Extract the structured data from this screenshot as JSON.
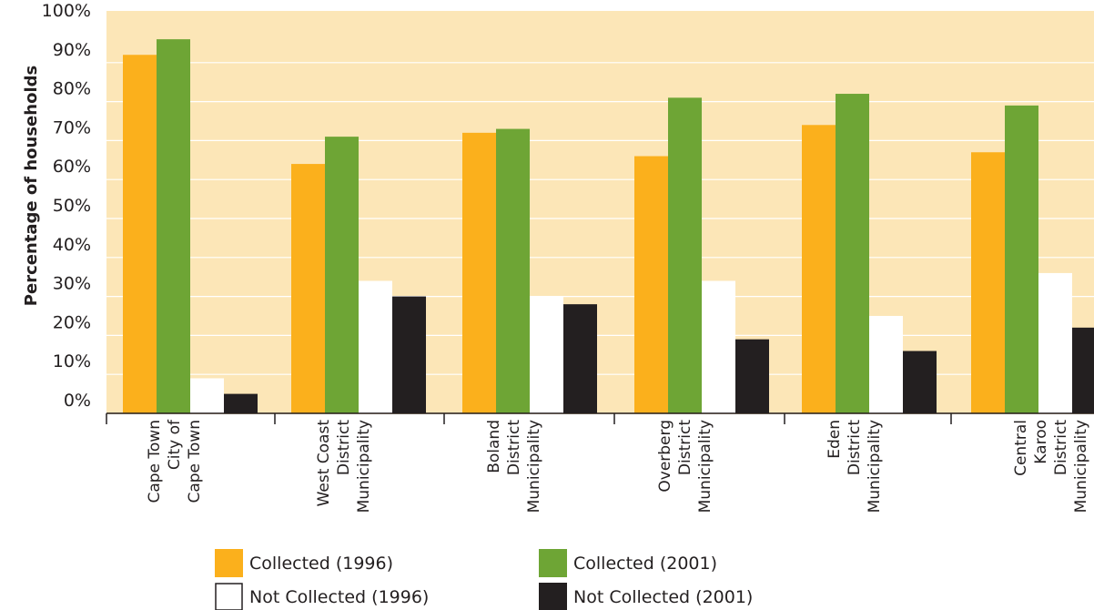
{
  "chart_data": {
    "type": "bar",
    "ylabel": "Percentage of households",
    "ylim": [
      0,
      100
    ],
    "y_ticks": [
      "0%",
      "10%",
      "20%",
      "30%",
      "40%",
      "50%",
      "60%",
      "70%",
      "80%",
      "90%",
      "100%"
    ],
    "grid": true,
    "legend_position": "bottom",
    "categories": [
      [
        "Cape Town",
        "City of",
        "Cape Town"
      ],
      [
        "West Coast",
        "District",
        "Municipality"
      ],
      [
        "Boland",
        "District",
        "Municipality"
      ],
      [
        "Overberg",
        "District",
        "Municipality"
      ],
      [
        "Eden",
        "District",
        "Municipality"
      ],
      [
        "Central",
        "Karoo",
        "District",
        "Municipality"
      ]
    ],
    "series": [
      {
        "name": "Collected (1996)",
        "color": "#fbb01c",
        "values": [
          92,
          64,
          72,
          66,
          74,
          67
        ]
      },
      {
        "name": "Collected (2001)",
        "color": "#6ea535",
        "values": [
          96,
          71,
          73,
          81,
          82,
          79
        ]
      },
      {
        "name": "Not Collected (1996)",
        "color": "#ffffff",
        "values": [
          9,
          34,
          30,
          34,
          25,
          36
        ]
      },
      {
        "name": "Not Collected (2001)",
        "color": "#231f20",
        "values": [
          5,
          30,
          28,
          19,
          16,
          22
        ]
      }
    ],
    "colors": {
      "plot_background": "#fce6b7",
      "gridline": "#ffffff",
      "axis": "#231f20"
    }
  }
}
